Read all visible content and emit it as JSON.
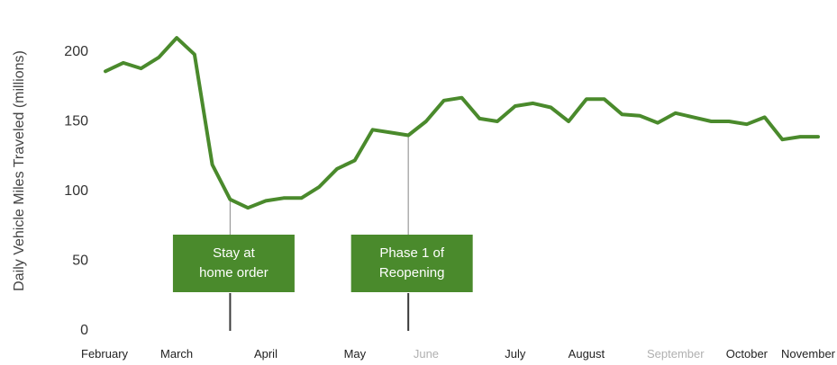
{
  "chart_data": {
    "type": "line",
    "title": "",
    "ylabel": "Daily Vehicle Miles Traveled (millions)",
    "xlabel": "",
    "ylim": [
      0,
      215
    ],
    "yticks": [
      0,
      50,
      100,
      150,
      200
    ],
    "grid": false,
    "months": [
      {
        "label": "February",
        "index": 0
      },
      {
        "label": "March",
        "index": 4
      },
      {
        "label": "April",
        "index": 9
      },
      {
        "label": "May",
        "index": 14
      },
      {
        "label": "June",
        "index": 18
      },
      {
        "label": "July",
        "index": 23
      },
      {
        "label": "August",
        "index": 27
      },
      {
        "label": "September",
        "index": 32
      },
      {
        "label": "October",
        "index": 36
      },
      {
        "label": "November",
        "index": 41
      }
    ],
    "faded_months": [
      "June",
      "September"
    ],
    "series": [
      {
        "color": "#4a8a2c",
        "values": [
          185,
          191,
          187,
          195,
          209,
          197,
          118,
          93,
          87,
          92,
          94,
          94,
          102,
          115,
          121,
          143,
          141,
          139,
          149,
          164,
          166,
          151,
          149,
          160,
          162,
          159,
          149,
          165,
          165,
          154,
          153,
          148,
          155,
          152,
          149,
          149,
          147,
          152,
          136,
          138,
          138
        ]
      }
    ],
    "annotations": [
      {
        "lines": [
          "Stay at",
          "home order"
        ],
        "index": 7.0
      },
      {
        "lines": [
          "Phase 1 of",
          "Reopening"
        ],
        "index": 17.0
      }
    ],
    "annotation_color": "#4a8a2c"
  }
}
